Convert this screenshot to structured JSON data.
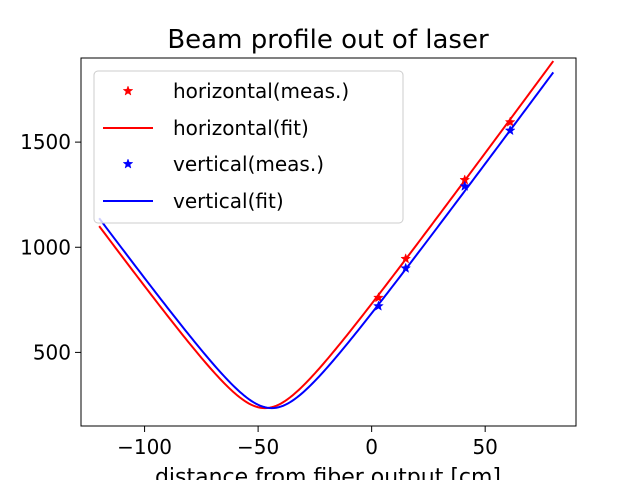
{
  "chart_data": {
    "type": "line",
    "title": "Beam profile out of laser",
    "xlabel": "distance from fiber output [cm]",
    "ylabel": "",
    "xlim": [
      -128,
      90
    ],
    "ylim": [
      150,
      1900
    ],
    "xticks": [
      -100,
      -50,
      0,
      50
    ],
    "xtick_labels": [
      "−100",
      "−50",
      "0",
      "50"
    ],
    "yticks": [
      500,
      1000,
      1500
    ],
    "ytick_labels": [
      "500",
      "1000",
      "1500"
    ],
    "grid": false,
    "legend": "top-left",
    "series": [
      {
        "name": "horizontal(meas.)",
        "kind": "markers",
        "color": "#ff0000",
        "x": [
          3,
          15,
          41,
          61
        ],
        "y": [
          760,
          945,
          1320,
          1595
        ]
      },
      {
        "name": "horizontal(fit)",
        "kind": "line",
        "color": "#ff0000",
        "fit": {
          "w0": 235,
          "z0": -47,
          "slope": 14.73
        },
        "x_range": [
          -120,
          80
        ]
      },
      {
        "name": "vertical(meas.)",
        "kind": "markers",
        "color": "#0000ff",
        "x": [
          3,
          15,
          41,
          61
        ],
        "y": [
          720,
          900,
          1290,
          1555
        ]
      },
      {
        "name": "vertical(fit)",
        "kind": "line",
        "color": "#0000ff",
        "fit": {
          "w0": 235,
          "z0": -44,
          "slope": 14.65
        },
        "x_range": [
          -120,
          80
        ]
      }
    ]
  }
}
